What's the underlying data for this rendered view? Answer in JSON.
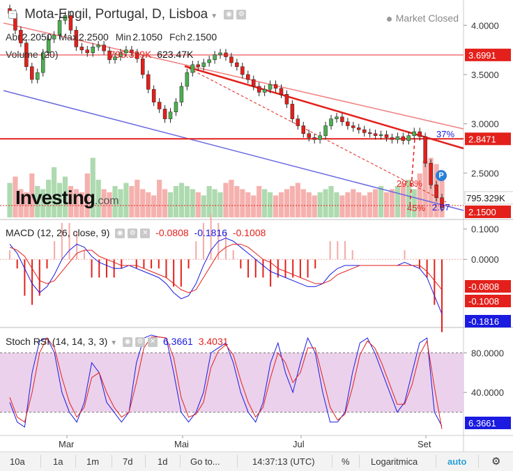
{
  "header": {
    "title": "Mota-Engil, Portugal, D, Lisboa",
    "market_status": "Market Closed",
    "ohlc": [
      {
        "key": "Abr",
        "value": "2.2050"
      },
      {
        "key": "Max",
        "value": "2.2500"
      },
      {
        "key": "Min",
        "value": "2.1050"
      },
      {
        "key": "Fch",
        "value": "2.1500"
      }
    ],
    "volume_label": "Volume (20)",
    "volume_value_1": "795.329K",
    "volume_value_2": "623.47K"
  },
  "logo": {
    "name": "Investing",
    "suffix": ".com"
  },
  "colors": {
    "up": "#4caf50",
    "down": "#e3201b",
    "resistance": "#e3201b",
    "trend_light": "#f08080",
    "support": "#6a6ae0",
    "macd_line": "#1a1ae0",
    "signal_line": "#e3201b",
    "stoch_band": "#e6c6e6"
  },
  "chart_data": [
    {
      "type": "candlestick",
      "title": "Mota-Engil, Portugal, D, Lisboa",
      "ylim": [
        2.05,
        4.2
      ],
      "y_ticks": [
        "4.0000",
        "3.5000",
        "3.0000",
        "2.5000"
      ],
      "x_ticks": [
        "Mar",
        "Mai",
        "Jul",
        "Set"
      ],
      "horizontal_levels": [
        3.6991,
        2.8471
      ],
      "level_tags": [
        "3.6991",
        "2.8471"
      ],
      "current_price_tag": "2.1500",
      "volume_tag": "795.329K",
      "annotations": [
        "37%",
        "29.8%",
        "45%",
        "2.07"
      ],
      "close": [
        4.12,
        3.95,
        3.82,
        3.58,
        3.45,
        3.52,
        3.72,
        3.86,
        3.9,
        4.05,
        4.1,
        3.95,
        3.78,
        3.75,
        3.72,
        3.78,
        3.8,
        3.74,
        3.65,
        3.68,
        3.72,
        3.75,
        3.72,
        3.66,
        3.5,
        3.35,
        3.22,
        3.15,
        3.05,
        3.12,
        3.22,
        3.38,
        3.52,
        3.6,
        3.58,
        3.62,
        3.65,
        3.7,
        3.72,
        3.68,
        3.62,
        3.58,
        3.5,
        3.45,
        3.38,
        3.32,
        3.35,
        3.4,
        3.36,
        3.3,
        3.2,
        3.05,
        2.98,
        2.9,
        2.86,
        2.84,
        2.88,
        2.98,
        3.05,
        3.07,
        3.02,
        2.98,
        2.96,
        2.94,
        2.91,
        2.9,
        2.88,
        2.89,
        2.86,
        2.84,
        2.87,
        2.83,
        2.88,
        2.92,
        2.87,
        2.6,
        2.38,
        2.25,
        2.15
      ],
      "volume_pane": {
        "volume_values": [
          55,
          65,
          45,
          40,
          70,
          50,
          45,
          60,
          80,
          55,
          65,
          50,
          45,
          40,
          70,
          95,
          60,
          45,
          40,
          50,
          45,
          55,
          50,
          60,
          45,
          40,
          35,
          60,
          45,
          40,
          50,
          55,
          50,
          45,
          40,
          35,
          50,
          45,
          40,
          55,
          60,
          50,
          45,
          40,
          35,
          50,
          45,
          40,
          35,
          40,
          45,
          50,
          55,
          45,
          40,
          35,
          40,
          45,
          50,
          40,
          35,
          40,
          45,
          40,
          35,
          40,
          45,
          50,
          40,
          45,
          50,
          55,
          60,
          45,
          70,
          90,
          95,
          85,
          60
        ]
      }
    },
    {
      "type": "line",
      "title": "MACD (12, 26, close, 9)",
      "values_text": [
        "-0.0808",
        "-0.1816",
        "-0.1008"
      ],
      "ylim": [
        -0.22,
        0.12
      ],
      "y_ticks": [
        "0.1000",
        "0.0000"
      ],
      "series": [
        {
          "name": "MACD",
          "values": [
            0.05,
            0.02,
            -0.03,
            -0.08,
            -0.11,
            -0.09,
            -0.05,
            0.0,
            0.03,
            0.05,
            0.04,
            0.01,
            -0.01,
            -0.02,
            -0.03,
            -0.03,
            -0.02,
            -0.03,
            -0.04,
            -0.05,
            -0.06,
            -0.08,
            -0.11,
            -0.13,
            -0.12,
            -0.08,
            -0.02,
            0.03,
            0.06,
            0.07,
            0.06,
            0.04,
            0.02,
            0.0,
            -0.02,
            -0.04,
            -0.05,
            -0.06,
            -0.07,
            -0.08,
            -0.09,
            -0.09,
            -0.08,
            -0.05,
            -0.03,
            -0.02,
            -0.02,
            -0.02,
            -0.02,
            -0.02,
            -0.02,
            -0.02,
            -0.02,
            -0.01,
            -0.02,
            -0.03,
            -0.06,
            -0.12,
            -0.18
          ]
        },
        {
          "name": "Signal",
          "values": [
            0.04,
            0.03,
            0.01,
            -0.03,
            -0.07,
            -0.08,
            -0.07,
            -0.04,
            -0.01,
            0.02,
            0.03,
            0.03,
            0.01,
            0.0,
            -0.01,
            -0.02,
            -0.02,
            -0.02,
            -0.03,
            -0.04,
            -0.05,
            -0.06,
            -0.08,
            -0.1,
            -0.11,
            -0.1,
            -0.06,
            -0.02,
            0.02,
            0.04,
            0.05,
            0.05,
            0.04,
            0.02,
            0.0,
            -0.01,
            -0.03,
            -0.04,
            -0.05,
            -0.06,
            -0.07,
            -0.08,
            -0.08,
            -0.07,
            -0.05,
            -0.04,
            -0.03,
            -0.02,
            -0.02,
            -0.02,
            -0.02,
            -0.02,
            -0.02,
            -0.02,
            -0.02,
            -0.02,
            -0.04,
            -0.07,
            -0.1
          ]
        }
      ],
      "tags": [
        "-0.0808",
        "-0.1008",
        "-0.1816"
      ]
    },
    {
      "type": "line",
      "title": "Stoch RSI (14, 14, 3, 3)",
      "values_text": [
        "6.3661",
        "3.4031"
      ],
      "ylim": [
        0,
        100
      ],
      "y_ticks": [
        "80.0000",
        "40.0000"
      ],
      "band": [
        20,
        80
      ],
      "series": [
        {
          "name": "K",
          "values": [
            30,
            10,
            5,
            60,
            92,
            95,
            80,
            40,
            20,
            10,
            30,
            70,
            60,
            30,
            20,
            10,
            20,
            70,
            95,
            98,
            96,
            95,
            60,
            20,
            10,
            20,
            40,
            80,
            85,
            90,
            70,
            40,
            20,
            10,
            30,
            70,
            90,
            60,
            40,
            70,
            95,
            80,
            40,
            10,
            10,
            20,
            60,
            90,
            95,
            80,
            60,
            40,
            20,
            30,
            60,
            90,
            95,
            20,
            6
          ]
        },
        {
          "name": "D",
          "values": [
            35,
            15,
            10,
            40,
            80,
            95,
            85,
            55,
            30,
            15,
            25,
            55,
            60,
            40,
            25,
            15,
            20,
            50,
            85,
            96,
            96,
            95,
            75,
            35,
            15,
            18,
            30,
            65,
            82,
            88,
            78,
            52,
            30,
            15,
            25,
            55,
            80,
            70,
            50,
            60,
            85,
            85,
            55,
            25,
            12,
            18,
            45,
            78,
            92,
            85,
            68,
            48,
            28,
            28,
            48,
            78,
            92,
            45,
            3
          ]
        }
      ],
      "tags": [
        "6.3661"
      ]
    }
  ],
  "toolbar": {
    "items": [
      "10a",
      "1a",
      "1m",
      "7d",
      "1d",
      "Go to...",
      "14:37:13 (UTC)",
      "%",
      "Logaritmica",
      "auto"
    ]
  }
}
